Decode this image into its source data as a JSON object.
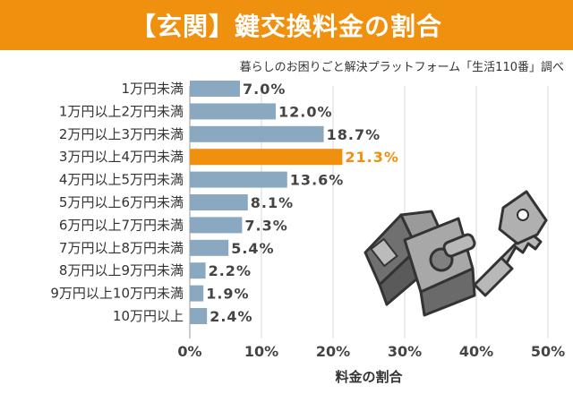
{
  "title": "【玄関】鍵交換料金の割合",
  "source": "暮らしのお困りごと解決プラットフォーム「生活110番」調べ",
  "colors": {
    "bar": "#8aa9c0",
    "highlight": "#f0900f",
    "title_bg": "#f0900f",
    "grid": "#d8d8d8"
  },
  "chart_data": {
    "type": "bar",
    "orientation": "horizontal",
    "categories": [
      "1万円未満",
      "1万円以上2万円未満",
      "2万円以上3万円未満",
      "3万円以上4万円未満",
      "4万円以上5万円未満",
      "5万円以上6万円未満",
      "6万円以上7万円未満",
      "7万円以上8万円未満",
      "8万円以上9万円未満",
      "9万円以上10万円未満",
      "10万円以上"
    ],
    "values": [
      7.0,
      12.0,
      18.7,
      21.3,
      13.6,
      8.1,
      7.3,
      5.4,
      2.2,
      1.9,
      2.4
    ],
    "value_labels": [
      "7.0%",
      "12.0%",
      "18.7%",
      "21.3%",
      "13.6%",
      "8.1%",
      "7.3%",
      "5.4%",
      "2.2%",
      "1.9%",
      "2.4%"
    ],
    "highlight_category": "3万円以上4万円未満",
    "xlabel": "料金の割合",
    "xlim": [
      0,
      50
    ],
    "xticks": [
      0,
      10,
      20,
      30,
      40,
      50
    ],
    "xtick_labels": [
      "0%",
      "10%",
      "20%",
      "30%",
      "40%",
      "50%"
    ],
    "grid": true
  }
}
